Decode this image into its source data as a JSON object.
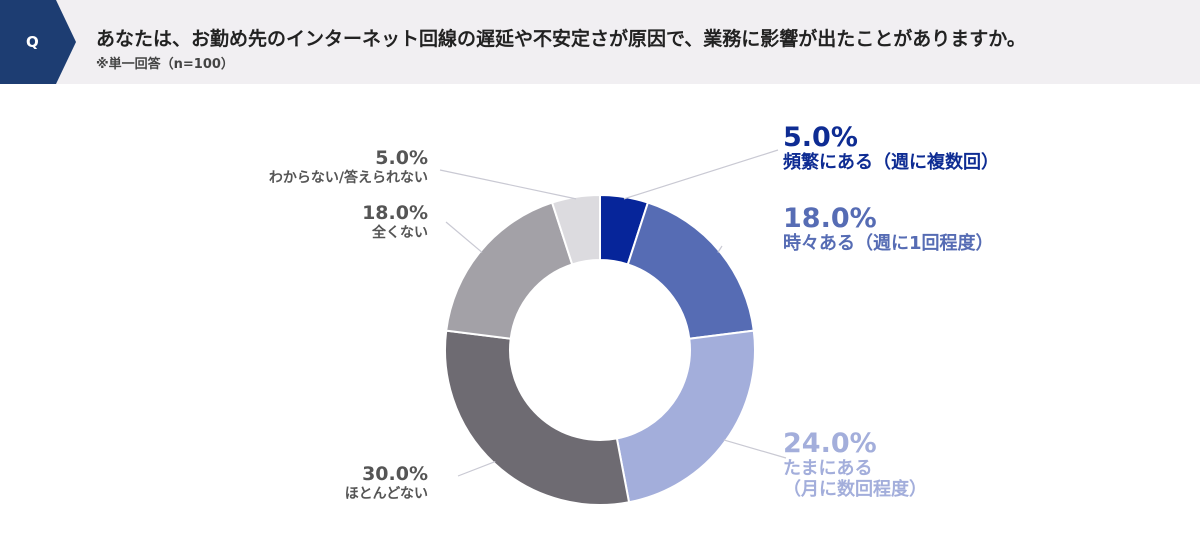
{
  "question": {
    "badge": "Q",
    "text": "あなたは、お勤め先のインターネット回線の遅延や不安定さが原因で、業務に影響が出たことがありますか。",
    "note": "※単一回答（n=100）"
  },
  "colors": {
    "header_bg": "#f1eff2",
    "badge_bg": "#1d3d72",
    "leader_line": "#c9c9d3"
  },
  "chart_data": {
    "type": "pie",
    "donut": true,
    "n": 100,
    "slices": [
      {
        "label": "頻繁にある（週に複数回）",
        "label_lines": [
          "頻繁にある（週に複数回）"
        ],
        "pct_text": "5.0%",
        "value": 5.0,
        "color": "#06259a",
        "text_color": "#0e2c93"
      },
      {
        "label": "時々ある（週に1回程度）",
        "label_lines": [
          "時々ある（週に1回程度）"
        ],
        "pct_text": "18.0%",
        "value": 18.0,
        "color": "#566cb4",
        "text_color": "#566cb4"
      },
      {
        "label": "たまにある（月に数回程度）",
        "label_lines": [
          "たまにある",
          "（月に数回程度）"
        ],
        "pct_text": "24.0%",
        "value": 24.0,
        "color": "#a3aedb",
        "text_color": "#a3aedb"
      },
      {
        "label": "ほとんどない",
        "label_lines": [
          "ほとんどない"
        ],
        "pct_text": "30.0%",
        "value": 30.0,
        "color": "#6e6b72",
        "text_color": "#555555"
      },
      {
        "label": "全くない",
        "label_lines": [
          "全くない"
        ],
        "pct_text": "18.0%",
        "value": 18.0,
        "color": "#a3a1a7",
        "text_color": "#555555"
      },
      {
        "label": "わからない/答えられない",
        "label_lines": [
          "わからない/答えられない"
        ],
        "pct_text": "5.0%",
        "value": 5.0,
        "color": "#dcdbdf",
        "text_color": "#555555"
      }
    ]
  }
}
